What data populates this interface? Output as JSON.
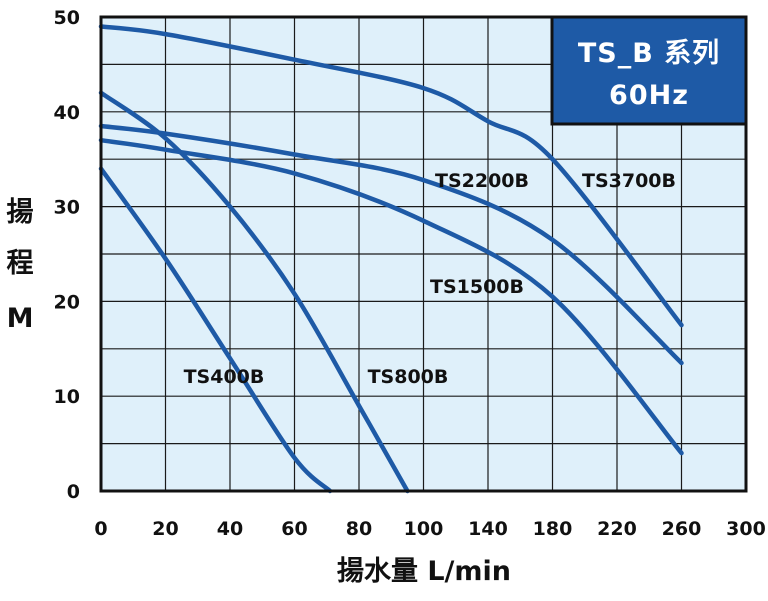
{
  "chart_data": {
    "type": "line",
    "xlabel": "揚水量 L/min",
    "ylabel_lines": [
      "揚",
      "程",
      "M"
    ],
    "xlim": [
      0,
      300
    ],
    "ylim": [
      0,
      50
    ],
    "x_ticks": [
      "0",
      "20",
      "40",
      "60",
      "80",
      "100",
      "140",
      "180",
      "220",
      "260",
      "300"
    ],
    "y_ticks": [
      "0",
      "10",
      "20",
      "30",
      "40",
      "50"
    ],
    "grid": true,
    "note": "x axis is non-linear: 20 L/min per division up to 100, then 40 L/min per division",
    "badge": {
      "line1": "TS_B 系列",
      "line2": "60Hz"
    },
    "series": [
      {
        "name": "TS400B",
        "x": [
          0,
          20,
          40,
          60,
          71
        ],
        "y": [
          34,
          24.5,
          14,
          3.5,
          0
        ]
      },
      {
        "name": "TS800B",
        "x": [
          0,
          20,
          40,
          60,
          80,
          95
        ],
        "y": [
          42,
          37.2,
          30,
          20.8,
          9,
          0
        ]
      },
      {
        "name": "TS1500B",
        "x": [
          0,
          20,
          60,
          100,
          180,
          260
        ],
        "y": [
          37,
          36,
          33.5,
          28.5,
          20.5,
          4
        ]
      },
      {
        "name": "TS2200B",
        "x": [
          0,
          20,
          60,
          100,
          180,
          260
        ],
        "y": [
          38.5,
          37.7,
          35.5,
          32.8,
          26.5,
          13.5
        ]
      },
      {
        "name": "TS3700B",
        "x": [
          0,
          20,
          60,
          100,
          140,
          180,
          260
        ],
        "y": [
          49,
          48.2,
          45.5,
          42.5,
          39,
          35,
          17.5
        ]
      }
    ]
  },
  "colors": {
    "plot_bg": "#dff0fa",
    "grid": "#1a1a1a",
    "curve": "#1e5aa6",
    "badge_bg": "#1e5aa6",
    "text": "#111111"
  }
}
